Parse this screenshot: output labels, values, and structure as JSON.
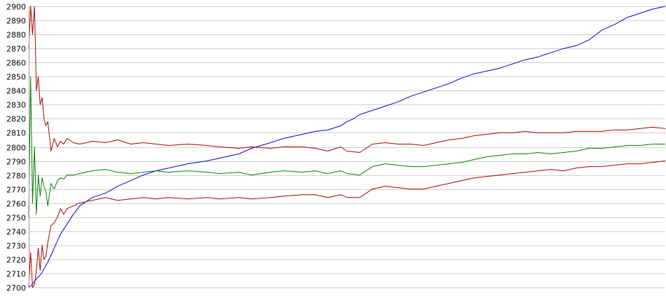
{
  "chart_data": {
    "type": "line",
    "title": "",
    "xlabel": "",
    "ylabel": "",
    "ylim": [
      2700,
      2900
    ],
    "yticks": [
      2700,
      2710,
      2720,
      2730,
      2740,
      2750,
      2760,
      2770,
      2780,
      2790,
      2800,
      2810,
      2820,
      2830,
      2840,
      2850,
      2860,
      2870,
      2880,
      2890,
      2900
    ],
    "xlim": [
      0,
      100
    ],
    "grid": true,
    "legend": "none",
    "series": [
      {
        "color": "#0000cc",
        "x": [
          0,
          0.5,
          1,
          2,
          3,
          4,
          5,
          6,
          7,
          8,
          10,
          12,
          14,
          16,
          18,
          20,
          22,
          25,
          28,
          30,
          33,
          35,
          38,
          40,
          43,
          45,
          47,
          49,
          50,
          51,
          52,
          54,
          56,
          58,
          60,
          62,
          64,
          66,
          68,
          70,
          72,
          74,
          76,
          78,
          80,
          82,
          84,
          86,
          88,
          90,
          92,
          94,
          96,
          98,
          100
        ],
        "values": [
          2700,
          2702,
          2705,
          2710,
          2718,
          2728,
          2738,
          2745,
          2752,
          2758,
          2764,
          2767,
          2772,
          2776,
          2780,
          2783,
          2785,
          2788,
          2790,
          2792,
          2795,
          2799,
          2803,
          2806,
          2809,
          2811,
          2812,
          2815,
          2818,
          2820,
          2823,
          2826,
          2829,
          2832,
          2836,
          2839,
          2842,
          2845,
          2849,
          2852,
          2854,
          2856,
          2859,
          2862,
          2864,
          2867,
          2870,
          2872,
          2876,
          2883,
          2887,
          2892,
          2895,
          2898,
          2900
        ]
      },
      {
        "color": "#008000",
        "x": [
          0,
          0.3,
          0.6,
          0.9,
          1.2,
          1.5,
          1.8,
          2.1,
          2.4,
          2.7,
          3,
          3.5,
          4,
          4.5,
          5,
          5.5,
          6,
          7,
          8,
          10,
          12,
          14,
          16,
          18,
          20,
          22,
          25,
          28,
          30,
          33,
          35,
          38,
          40,
          43,
          45,
          47,
          49,
          50,
          52,
          54,
          56,
          58,
          60,
          62,
          64,
          66,
          68,
          70,
          72,
          74,
          76,
          78,
          80,
          82,
          84,
          86,
          88,
          90,
          92,
          94,
          96,
          98,
          100
        ],
        "values": [
          2750,
          2850,
          2760,
          2800,
          2752,
          2780,
          2765,
          2778,
          2772,
          2768,
          2758,
          2774,
          2770,
          2776,
          2778,
          2777,
          2780,
          2780,
          2781,
          2783,
          2784,
          2782,
          2781,
          2782,
          2783,
          2782,
          2783,
          2782,
          2781,
          2782,
          2780,
          2782,
          2783,
          2782,
          2783,
          2781,
          2783,
          2781,
          2780,
          2786,
          2788,
          2787,
          2786,
          2786,
          2787,
          2788,
          2789,
          2791,
          2793,
          2794,
          2795,
          2795,
          2796,
          2795,
          2796,
          2797,
          2799,
          2799,
          2800,
          2801,
          2801,
          2802,
          2802
        ]
      },
      {
        "color": "#aa0000",
        "x": [
          0,
          0.3,
          0.6,
          0.9,
          1.2,
          1.5,
          1.8,
          2.1,
          2.4,
          2.7,
          3,
          3.5,
          4,
          4.5,
          5,
          5.5,
          6,
          7,
          8,
          10,
          12,
          14,
          16,
          18,
          20,
          22,
          25,
          28,
          30,
          33,
          35,
          38,
          40,
          43,
          45,
          47,
          49,
          50,
          52,
          54,
          56,
          58,
          60,
          62,
          64,
          66,
          68,
          70,
          72,
          74,
          76,
          78,
          80,
          82,
          84,
          86,
          88,
          90,
          92,
          94,
          96,
          98,
          100
        ],
        "values": [
          2870,
          2900,
          2880,
          2900,
          2840,
          2850,
          2830,
          2835,
          2820,
          2815,
          2818,
          2797,
          2806,
          2800,
          2804,
          2802,
          2806,
          2803,
          2802,
          2804,
          2803,
          2805,
          2802,
          2803,
          2802,
          2801,
          2802,
          2801,
          2800,
          2799,
          2800,
          2799,
          2800,
          2800,
          2799,
          2797,
          2800,
          2797,
          2796,
          2802,
          2803,
          2802,
          2802,
          2801,
          2803,
          2805,
          2806,
          2808,
          2809,
          2810,
          2810,
          2811,
          2810,
          2810,
          2810,
          2811,
          2811,
          2811,
          2812,
          2812,
          2813,
          2814,
          2813
        ]
      },
      {
        "color": "#aa0000",
        "x": [
          0,
          0.3,
          0.6,
          0.9,
          1.2,
          1.5,
          1.8,
          2.1,
          2.4,
          2.7,
          3,
          3.5,
          4,
          4.5,
          5,
          5.5,
          6,
          7,
          8,
          10,
          12,
          14,
          16,
          18,
          20,
          22,
          25,
          28,
          30,
          33,
          35,
          38,
          40,
          43,
          45,
          47,
          49,
          50,
          52,
          54,
          56,
          58,
          60,
          62,
          64,
          66,
          68,
          70,
          72,
          74,
          76,
          78,
          80,
          82,
          84,
          86,
          88,
          90,
          92,
          94,
          96,
          98,
          100
        ],
        "values": [
          2700,
          2725,
          2700,
          2702,
          2712,
          2728,
          2712,
          2730,
          2720,
          2722,
          2732,
          2744,
          2746,
          2750,
          2756,
          2752,
          2756,
          2758,
          2760,
          2762,
          2764,
          2762,
          2763,
          2764,
          2763,
          2764,
          2763,
          2764,
          2763,
          2764,
          2763,
          2764,
          2765,
          2766,
          2766,
          2764,
          2766,
          2764,
          2764,
          2770,
          2772,
          2771,
          2770,
          2770,
          2772,
          2774,
          2776,
          2778,
          2779,
          2780,
          2781,
          2782,
          2783,
          2784,
          2783,
          2785,
          2786,
          2786,
          2787,
          2788,
          2788,
          2789,
          2790
        ]
      }
    ]
  }
}
